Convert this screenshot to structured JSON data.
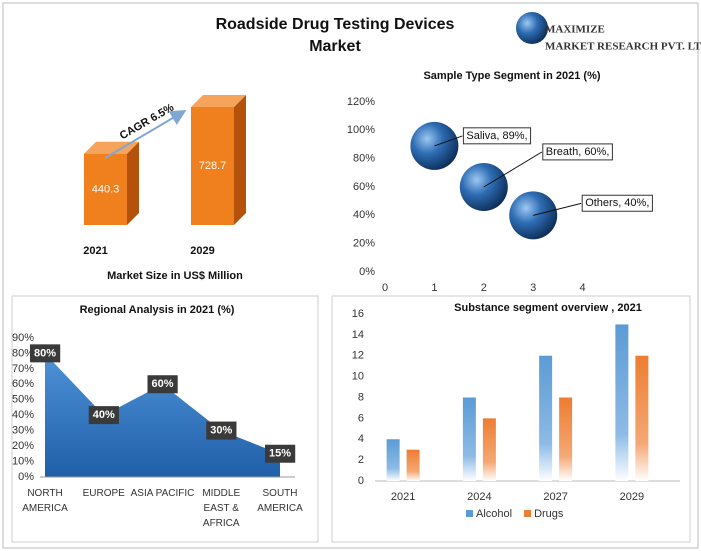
{
  "header": {
    "title": "Roadside Drug Testing Devices Market",
    "logo_name": "MAXIMIZE",
    "logo_sub": "MARKET RESEARCH PVT. LTD."
  },
  "chart_data": [
    {
      "type": "bar",
      "categories": [
        "2021",
        "2029"
      ],
      "values": [
        440.3,
        728.7
      ],
      "color": "#f07f1e",
      "annotation": "CAGR 6.5%",
      "xlabel": "Market Size in US$ Million"
    },
    {
      "type": "scatter",
      "title": "Sample Type Segment in 2021 (%)",
      "x": [
        1,
        2,
        3
      ],
      "values": [
        89,
        60,
        40
      ],
      "value_labels": [
        "Saliva, 89%,",
        "Breath, 60%,",
        "Others, 40%,"
      ],
      "color": "#2e6db4",
      "xlim": [
        0,
        5
      ],
      "xticks": [
        0,
        1,
        2,
        3,
        4
      ],
      "ylim": [
        0,
        120
      ],
      "yticks": [
        {
          "value": 0,
          "label": "0%"
        },
        {
          "value": 20,
          "label": "20%"
        },
        {
          "value": 40,
          "label": "40%"
        },
        {
          "value": 60,
          "label": "60%"
        },
        {
          "value": 80,
          "label": "80%"
        },
        {
          "value": 100,
          "label": "100%"
        },
        {
          "value": 120,
          "label": "120%"
        }
      ]
    },
    {
      "type": "area",
      "title": "Regional Analysis in 2021 (%)",
      "categories": [
        "NORTH AMERICA",
        "EUROPE",
        "ASIA PACIFIC",
        "MIDDLE EAST & AFRICA",
        "SOUTH AMERICA"
      ],
      "values": [
        80,
        40,
        60,
        30,
        15
      ],
      "value_labels": [
        "80%",
        "40%",
        "60%",
        "30%",
        "15%"
      ],
      "color": "#3f83c9",
      "ylim": [
        0,
        90
      ],
      "yticks": [
        {
          "value": 0,
          "label": "0%"
        },
        {
          "value": 10,
          "label": "10%"
        },
        {
          "value": 20,
          "label": "20%"
        },
        {
          "value": 30,
          "label": "30%"
        },
        {
          "value": 40,
          "label": "40%"
        },
        {
          "value": 50,
          "label": "50%"
        },
        {
          "value": 60,
          "label": "60%"
        },
        {
          "value": 70,
          "label": "70%"
        },
        {
          "value": 80,
          "label": "80%"
        },
        {
          "value": 90,
          "label": "90%"
        }
      ]
    },
    {
      "type": "bar",
      "title": "Substance segment overview , 2021",
      "categories": [
        "2021",
        "2024",
        "2027",
        "2029"
      ],
      "series": [
        {
          "name": "Alcohol",
          "color": "#5b9bd5",
          "values": [
            4,
            8,
            12,
            15
          ]
        },
        {
          "name": "Drugs",
          "color": "#ed7d31",
          "values": [
            3,
            6,
            8,
            12
          ]
        }
      ],
      "ylim": [
        0,
        16
      ],
      "yticks": [
        0,
        2,
        4,
        6,
        8,
        10,
        12,
        14,
        16
      ],
      "legend": "bottom"
    }
  ]
}
